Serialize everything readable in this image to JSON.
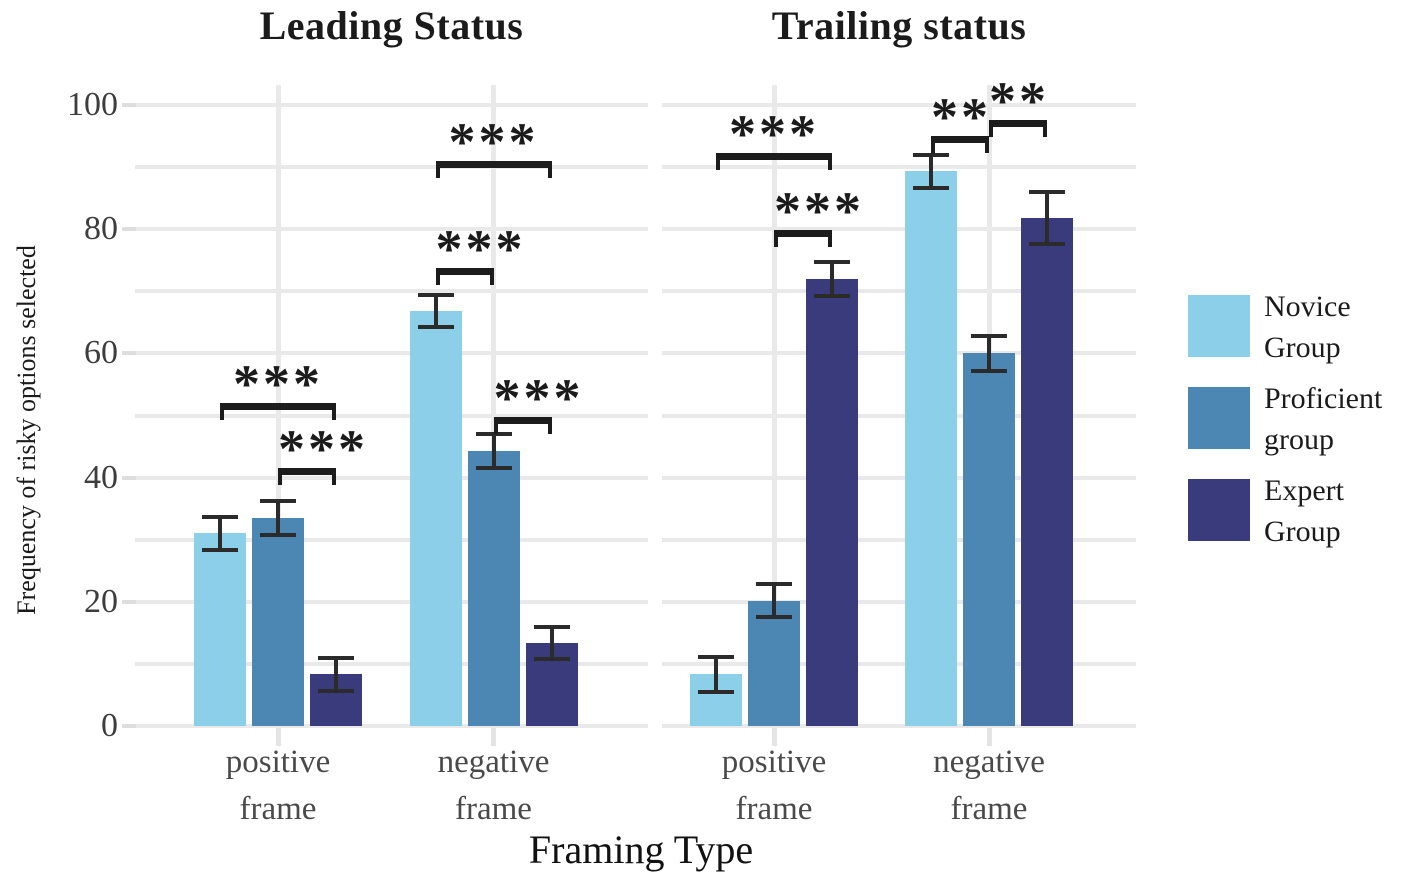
{
  "figure": {
    "x_axis_title": "Framing Type",
    "y_axis_title": "Frequency of risky options selected"
  },
  "chart_data": {
    "type": "bar",
    "title": "",
    "xlabel": "Framing Type",
    "ylabel": "Frequency of risky options selected",
    "ylim": [
      0,
      100
    ],
    "yticks": [
      0,
      20,
      40,
      60,
      80,
      100
    ],
    "grid_step": 10,
    "grid": "on",
    "legend_position": "right",
    "legend": [
      {
        "label": "Novice Group",
        "color": "#8BCFE9"
      },
      {
        "label": "Proficient group",
        "color": "#4C87B4"
      },
      {
        "label": "Expert Group",
        "color": "#3A3B7D"
      }
    ],
    "panels": [
      {
        "title": "Leading Status",
        "categories": [
          "positive frame",
          "negative frame"
        ],
        "series": [
          {
            "name": "Novice Group",
            "values": [
              31.0,
              66.8
            ],
            "errors": [
              3.0,
              2.9
            ]
          },
          {
            "name": "Proficient group",
            "values": [
              33.5,
              44.3
            ],
            "errors": [
              3.0,
              3.1
            ]
          },
          {
            "name": "Expert Group",
            "values": [
              8.3,
              13.4
            ],
            "errors": [
              3.0,
              2.9
            ]
          }
        ],
        "significance": [
          {
            "category": 0,
            "from": 0,
            "to": 2,
            "label": "***",
            "y": 52.0
          },
          {
            "category": 0,
            "from": 1,
            "to": 2,
            "label": "***",
            "y": 41.6
          },
          {
            "category": 1,
            "from": 0,
            "to": 2,
            "label": "***",
            "y": 91.0
          },
          {
            "category": 1,
            "from": 0,
            "to": 1,
            "label": "***",
            "y": 73.7
          },
          {
            "category": 1,
            "from": 1,
            "to": 2,
            "label": "***",
            "y": 49.8
          }
        ]
      },
      {
        "title": "Trailing status",
        "categories": [
          "positive frame",
          "negative frame"
        ],
        "series": [
          {
            "name": "Novice Group",
            "values": [
              8.3,
              89.3
            ],
            "errors": [
              3.2,
              3.0
            ]
          },
          {
            "name": "Proficient group",
            "values": [
              20.2,
              60.0
            ],
            "errors": [
              3.0,
              3.2
            ]
          },
          {
            "name": "Expert Group",
            "values": [
              72.0,
              81.8
            ],
            "errors": [
              3.0,
              4.5
            ]
          }
        ],
        "significance": [
          {
            "category": 0,
            "from": 0,
            "to": 2,
            "label": "***",
            "y": 92.3
          },
          {
            "category": 0,
            "from": 1,
            "to": 2,
            "label": "***",
            "y": 79.9
          },
          {
            "category": 1,
            "from": 0,
            "to": 1,
            "label": "**",
            "y": 95.0
          },
          {
            "category": 1,
            "from": 1,
            "to": 2,
            "label": "**",
            "y": 97.6
          }
        ]
      }
    ]
  }
}
